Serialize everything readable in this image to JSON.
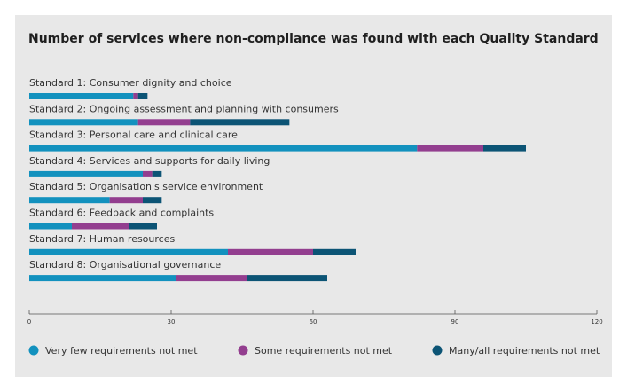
{
  "chart_data": {
    "type": "bar",
    "orientation": "horizontal",
    "stacked": true,
    "title": "Number of services where non-compliance was found with each Quality Standard",
    "categories": [
      "Standard 1: Consumer dignity and choice",
      "Standard 2: Ongoing assessment and planning with consumers",
      "Standard 3: Personal care and clinical care",
      "Standard 4: Services and supports for daily living",
      "Standard 5: Organisation's service environment",
      "Standard 6: Feedback and complaints",
      "Standard 7: Human resources",
      "Standard 8: Organisational governance"
    ],
    "series": [
      {
        "name": "Very few requirements not met",
        "color": "#1291be",
        "values": [
          22,
          23,
          82,
          24,
          17,
          9,
          42,
          31
        ]
      },
      {
        "name": "Some requirements not met",
        "color": "#933e8f",
        "values": [
          1,
          11,
          14,
          2,
          7,
          12,
          18,
          15
        ]
      },
      {
        "name": "Many/all requirements not met",
        "color": "#0c5475",
        "values": [
          2,
          21,
          9,
          2,
          4,
          6,
          9,
          17
        ]
      }
    ],
    "xlim": [
      0,
      120
    ],
    "x_ticks": [
      "0",
      "30",
      "60",
      "90",
      "120"
    ],
    "grid": false,
    "legend_position": "bottom"
  }
}
